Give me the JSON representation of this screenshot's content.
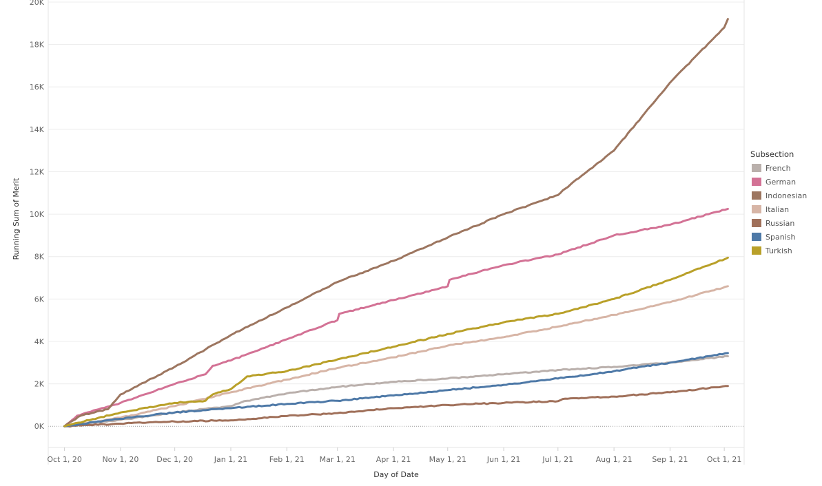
{
  "chart_data": {
    "type": "line",
    "xlabel": "Day of Date",
    "ylabel": "Running Sum of Merit",
    "ylim": [
      -1000,
      20000
    ],
    "xlim": [
      "2020-09-22",
      "2021-10-12"
    ],
    "grid": "horizontal",
    "legend_position": "right",
    "legend_title": "Subsection",
    "x_ticks": [
      {
        "date": "2020-10-01",
        "label": "Oct 1, 20"
      },
      {
        "date": "2020-11-01",
        "label": "Nov 1, 20"
      },
      {
        "date": "2020-12-01",
        "label": "Dec 1, 20"
      },
      {
        "date": "2021-01-01",
        "label": "Jan 1, 21"
      },
      {
        "date": "2021-02-01",
        "label": "Feb 1, 21"
      },
      {
        "date": "2021-03-01",
        "label": "Mar 1, 21"
      },
      {
        "date": "2021-04-01",
        "label": "Apr 1, 21"
      },
      {
        "date": "2021-05-01",
        "label": "May 1, 21"
      },
      {
        "date": "2021-06-01",
        "label": "Jun 1, 21"
      },
      {
        "date": "2021-07-01",
        "label": "Jul 1, 21"
      },
      {
        "date": "2021-08-01",
        "label": "Aug 1, 21"
      },
      {
        "date": "2021-09-01",
        "label": "Sep 1, 21"
      },
      {
        "date": "2021-10-01",
        "label": "Oct 1, 21"
      }
    ],
    "y_ticks": [
      {
        "value": 0,
        "label": "0K"
      },
      {
        "value": 2000,
        "label": "2K"
      },
      {
        "value": 4000,
        "label": "4K"
      },
      {
        "value": 6000,
        "label": "6K"
      },
      {
        "value": 8000,
        "label": "8K"
      },
      {
        "value": 10000,
        "label": "10K"
      },
      {
        "value": 12000,
        "label": "12K"
      },
      {
        "value": 14000,
        "label": "14K"
      },
      {
        "value": 16000,
        "label": "16K"
      },
      {
        "value": 18000,
        "label": "18K"
      },
      {
        "value": 20000,
        "label": "20K"
      }
    ],
    "series": [
      {
        "name": "French",
        "color": "#bab0ac",
        "points": [
          [
            "2020-10-01",
            0
          ],
          [
            "2020-11-01",
            300
          ],
          [
            "2020-12-01",
            650
          ],
          [
            "2021-01-01",
            950
          ],
          [
            "2021-01-10",
            1200
          ],
          [
            "2021-02-01",
            1550
          ],
          [
            "2021-03-01",
            1850
          ],
          [
            "2021-04-01",
            2100
          ],
          [
            "2021-05-01",
            2250
          ],
          [
            "2021-06-01",
            2450
          ],
          [
            "2021-07-01",
            2650
          ],
          [
            "2021-08-01",
            2800
          ],
          [
            "2021-09-01",
            3000
          ],
          [
            "2021-10-03",
            3300
          ]
        ]
      },
      {
        "name": "German",
        "color": "#d37295",
        "points": [
          [
            "2020-10-01",
            0
          ],
          [
            "2020-10-08",
            500
          ],
          [
            "2020-11-01",
            1100
          ],
          [
            "2020-12-01",
            2000
          ],
          [
            "2020-12-18",
            2450
          ],
          [
            "2020-12-22",
            2850
          ],
          [
            "2021-01-01",
            3100
          ],
          [
            "2021-02-01",
            4100
          ],
          [
            "2021-03-01",
            5000
          ],
          [
            "2021-03-02",
            5300
          ],
          [
            "2021-04-01",
            5950
          ],
          [
            "2021-05-01",
            6600
          ],
          [
            "2021-05-02",
            6900
          ],
          [
            "2021-06-01",
            7600
          ],
          [
            "2021-07-01",
            8100
          ],
          [
            "2021-08-01",
            9000
          ],
          [
            "2021-09-01",
            9500
          ],
          [
            "2021-10-03",
            10250
          ]
        ]
      },
      {
        "name": "Indonesian",
        "color": "#9d7660",
        "points": [
          [
            "2020-10-01",
            0
          ],
          [
            "2020-10-10",
            500
          ],
          [
            "2020-10-25",
            800
          ],
          [
            "2020-11-01",
            1500
          ],
          [
            "2020-12-01",
            2800
          ],
          [
            "2021-01-01",
            4300
          ],
          [
            "2021-02-01",
            5600
          ],
          [
            "2021-03-01",
            6800
          ],
          [
            "2021-04-01",
            7800
          ],
          [
            "2021-05-01",
            8900
          ],
          [
            "2021-06-01",
            10000
          ],
          [
            "2021-07-01",
            10900
          ],
          [
            "2021-07-05",
            11200
          ],
          [
            "2021-08-01",
            13000
          ],
          [
            "2021-09-01",
            16200
          ],
          [
            "2021-10-01",
            18800
          ],
          [
            "2021-10-03",
            19200
          ]
        ]
      },
      {
        "name": "Italian",
        "color": "#d7b5a6",
        "points": [
          [
            "2020-10-01",
            0
          ],
          [
            "2020-11-01",
            400
          ],
          [
            "2020-12-01",
            950
          ],
          [
            "2021-01-01",
            1600
          ],
          [
            "2021-02-01",
            2200
          ],
          [
            "2021-03-01",
            2750
          ],
          [
            "2021-04-01",
            3250
          ],
          [
            "2021-05-01",
            3800
          ],
          [
            "2021-06-01",
            4200
          ],
          [
            "2021-07-01",
            4700
          ],
          [
            "2021-08-01",
            5250
          ],
          [
            "2021-09-01",
            5850
          ],
          [
            "2021-10-03",
            6600
          ]
        ]
      },
      {
        "name": "Russian",
        "color": "#a0705a",
        "points": [
          [
            "2020-10-01",
            0
          ],
          [
            "2020-11-01",
            120
          ],
          [
            "2020-12-01",
            220
          ],
          [
            "2021-01-01",
            280
          ],
          [
            "2021-02-01",
            480
          ],
          [
            "2021-03-01",
            620
          ],
          [
            "2021-04-01",
            850
          ],
          [
            "2021-05-01",
            1000
          ],
          [
            "2021-06-01",
            1100
          ],
          [
            "2021-07-01",
            1180
          ],
          [
            "2021-07-05",
            1300
          ],
          [
            "2021-08-01",
            1400
          ],
          [
            "2021-09-01",
            1600
          ],
          [
            "2021-10-03",
            1900
          ]
        ]
      },
      {
        "name": "Spanish",
        "color": "#4e79a7",
        "points": [
          [
            "2020-10-01",
            0
          ],
          [
            "2020-11-01",
            350
          ],
          [
            "2020-12-01",
            650
          ],
          [
            "2021-01-01",
            850
          ],
          [
            "2021-02-01",
            1050
          ],
          [
            "2021-03-01",
            1200
          ],
          [
            "2021-04-01",
            1450
          ],
          [
            "2021-05-01",
            1700
          ],
          [
            "2021-06-01",
            1950
          ],
          [
            "2021-07-01",
            2250
          ],
          [
            "2021-08-01",
            2600
          ],
          [
            "2021-09-01",
            3000
          ],
          [
            "2021-10-03",
            3450
          ]
        ]
      },
      {
        "name": "Turkish",
        "color": "#b9a029",
        "points": [
          [
            "2020-10-01",
            0
          ],
          [
            "2020-11-01",
            650
          ],
          [
            "2020-12-01",
            1100
          ],
          [
            "2020-12-18",
            1200
          ],
          [
            "2020-12-22",
            1500
          ],
          [
            "2021-01-01",
            1750
          ],
          [
            "2021-01-10",
            2350
          ],
          [
            "2021-02-01",
            2600
          ],
          [
            "2021-03-01",
            3150
          ],
          [
            "2021-04-01",
            3750
          ],
          [
            "2021-05-01",
            4350
          ],
          [
            "2021-06-01",
            4900
          ],
          [
            "2021-07-01",
            5300
          ],
          [
            "2021-08-01",
            6000
          ],
          [
            "2021-09-01",
            6900
          ],
          [
            "2021-10-03",
            7950
          ]
        ]
      }
    ]
  }
}
